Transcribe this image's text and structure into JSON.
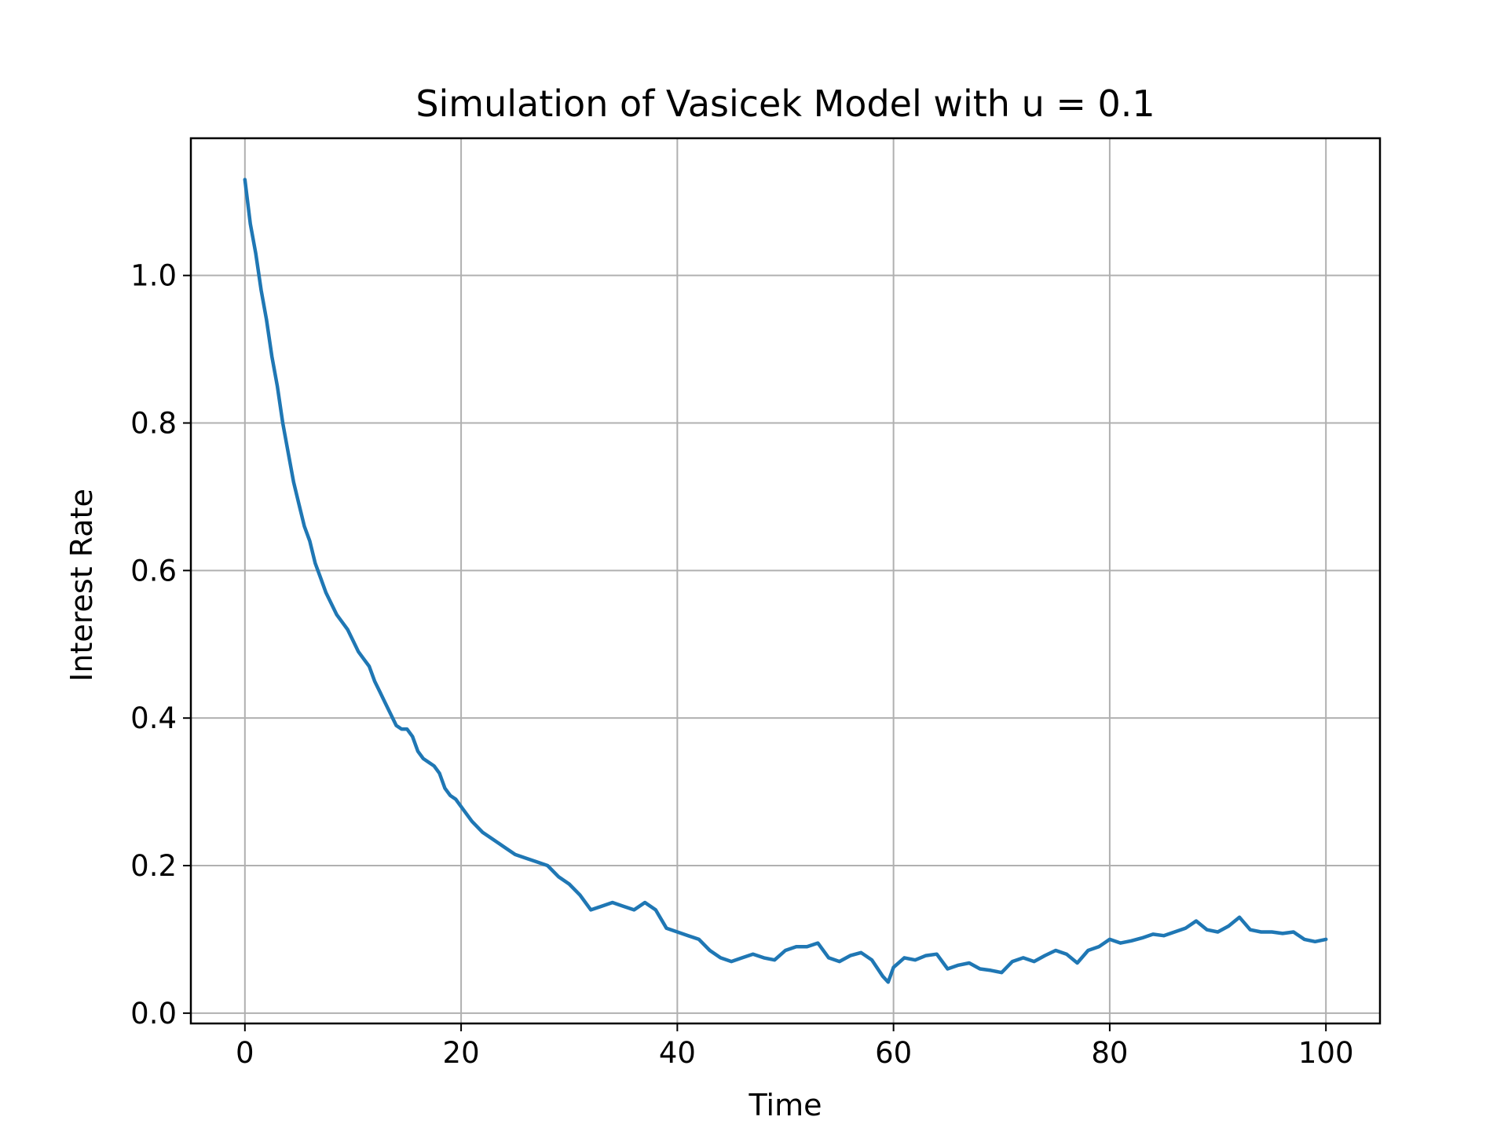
{
  "chart_data": {
    "type": "line",
    "title": "Simulation of Vasicek Model with u = 0.1",
    "xlabel": "Time",
    "ylabel": "Interest Rate",
    "xlim": [
      -5,
      105
    ],
    "ylim": [
      -0.014,
      1.186
    ],
    "xticks": [
      0,
      20,
      40,
      60,
      80,
      100
    ],
    "xtick_labels": [
      "0",
      "20",
      "40",
      "60",
      "80",
      "100"
    ],
    "yticks": [
      0.0,
      0.2,
      0.4,
      0.6,
      0.8,
      1.0
    ],
    "ytick_labels": [
      "0.0",
      "0.2",
      "0.4",
      "0.6",
      "0.8",
      "1.0"
    ],
    "grid": true,
    "line_color": "#1f77b4",
    "series": [
      {
        "x": [
          0,
          0.5,
          1,
          1.5,
          2,
          2.5,
          3,
          3.5,
          4,
          4.5,
          5,
          5.5,
          6,
          6.5,
          7,
          7.5,
          8,
          8.5,
          9,
          9.5,
          10,
          10.5,
          11,
          11.5,
          12,
          12.5,
          13,
          13.5,
          14,
          14.5,
          15,
          15.5,
          16,
          16.5,
          17,
          17.5,
          18,
          18.5,
          19,
          19.5,
          20,
          21,
          22,
          23,
          24,
          25,
          26,
          27,
          28,
          29,
          30,
          31,
          32,
          33,
          34,
          35,
          36,
          37,
          38,
          39,
          40,
          41,
          42,
          43,
          44,
          45,
          46,
          47,
          48,
          49,
          50,
          51,
          52,
          53,
          54,
          55,
          56,
          57,
          58,
          59,
          59.5,
          60,
          61,
          62,
          63,
          64,
          65,
          66,
          67,
          68,
          69,
          70,
          71,
          72,
          73,
          74,
          75,
          76,
          77,
          78,
          79,
          80,
          81,
          82,
          83,
          84,
          85,
          86,
          87,
          88,
          89,
          90,
          91,
          92,
          93,
          94,
          95,
          96,
          97,
          98,
          99,
          100
        ],
        "values": [
          1.13,
          1.07,
          1.03,
          0.98,
          0.94,
          0.89,
          0.85,
          0.8,
          0.76,
          0.72,
          0.69,
          0.66,
          0.64,
          0.61,
          0.59,
          0.57,
          0.555,
          0.54,
          0.53,
          0.52,
          0.505,
          0.49,
          0.48,
          0.47,
          0.45,
          0.435,
          0.42,
          0.405,
          0.39,
          0.385,
          0.385,
          0.375,
          0.355,
          0.345,
          0.34,
          0.335,
          0.325,
          0.305,
          0.295,
          0.29,
          0.28,
          0.26,
          0.245,
          0.235,
          0.225,
          0.215,
          0.21,
          0.205,
          0.2,
          0.185,
          0.175,
          0.16,
          0.14,
          0.145,
          0.15,
          0.145,
          0.14,
          0.15,
          0.14,
          0.115,
          0.11,
          0.105,
          0.1,
          0.085,
          0.075,
          0.07,
          0.075,
          0.08,
          0.075,
          0.072,
          0.085,
          0.09,
          0.09,
          0.095,
          0.075,
          0.07,
          0.078,
          0.082,
          0.072,
          0.05,
          0.042,
          0.062,
          0.075,
          0.072,
          0.078,
          0.08,
          0.06,
          0.065,
          0.068,
          0.06,
          0.058,
          0.055,
          0.07,
          0.075,
          0.07,
          0.078,
          0.085,
          0.08,
          0.068,
          0.085,
          0.09,
          0.1,
          0.095,
          0.098,
          0.102,
          0.107,
          0.105,
          0.11,
          0.115,
          0.125,
          0.113,
          0.11,
          0.118,
          0.13,
          0.113,
          0.11,
          0.11,
          0.108,
          0.11,
          0.1,
          0.097,
          0.1
        ]
      }
    ]
  }
}
